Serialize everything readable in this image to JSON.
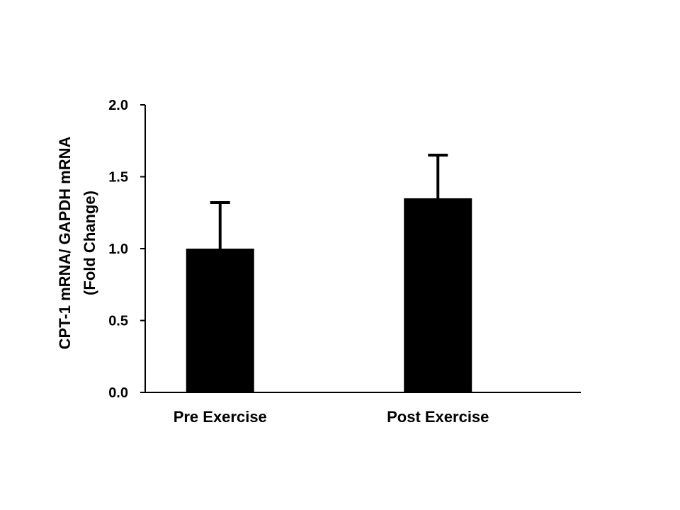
{
  "chart_data": {
    "type": "bar",
    "categories": [
      "Pre Exercise",
      "Post Exercise"
    ],
    "values": [
      1.0,
      1.35
    ],
    "error_upper": [
      0.32,
      0.3
    ],
    "ylabel": "CPT-1 mRNA/ GAPDH mRNA",
    "ylabel_line2": "(Fold Change)",
    "xlabel": "",
    "ylim": [
      0,
      2.0
    ],
    "yticks": [
      "0.0",
      "0.5",
      "1.0",
      "1.5",
      "2.0"
    ],
    "ytick_values": [
      0,
      0.5,
      1.0,
      1.5,
      2.0
    ],
    "grid": false,
    "legend": "none",
    "bar_color": "#000000"
  }
}
